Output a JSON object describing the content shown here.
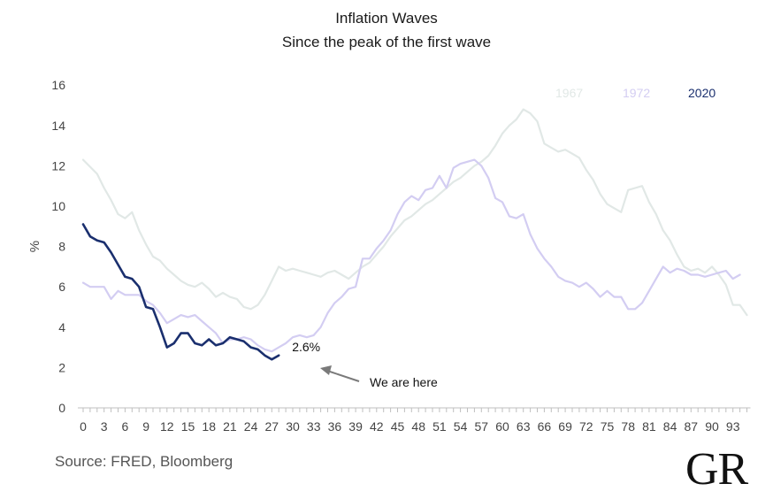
{
  "chart_data": {
    "type": "line",
    "title": "Inflation Waves",
    "subtitle": "Since the peak of the first wave",
    "xlabel": "",
    "ylabel": "%",
    "xlim": [
      0,
      95
    ],
    "ylim": [
      0,
      16
    ],
    "yticks": [
      0,
      2,
      4,
      6,
      8,
      10,
      12,
      14,
      16
    ],
    "xticks": [
      0,
      3,
      6,
      9,
      12,
      15,
      18,
      21,
      24,
      27,
      30,
      33,
      36,
      39,
      42,
      45,
      48,
      51,
      54,
      57,
      60,
      63,
      66,
      69,
      72,
      75,
      78,
      81,
      84,
      87,
      90,
      93
    ],
    "grid": false,
    "legend_position": "top-right",
    "series": [
      {
        "name": "1967",
        "color": "#e1e8e6",
        "points": [
          [
            0,
            12.3
          ],
          [
            2,
            11.6
          ],
          [
            3,
            10.9
          ],
          [
            4,
            10.3
          ],
          [
            5,
            9.6
          ],
          [
            6,
            9.4
          ],
          [
            7,
            9.7
          ],
          [
            8,
            8.8
          ],
          [
            9,
            8.1
          ],
          [
            10,
            7.5
          ],
          [
            11,
            7.3
          ],
          [
            12,
            6.9
          ],
          [
            13,
            6.6
          ],
          [
            14,
            6.3
          ],
          [
            15,
            6.1
          ],
          [
            16,
            6.0
          ],
          [
            17,
            6.2
          ],
          [
            18,
            5.9
          ],
          [
            19,
            5.5
          ],
          [
            20,
            5.7
          ],
          [
            21,
            5.5
          ],
          [
            22,
            5.4
          ],
          [
            23,
            5.0
          ],
          [
            24,
            4.9
          ],
          [
            25,
            5.1
          ],
          [
            26,
            5.6
          ],
          [
            27,
            6.3
          ],
          [
            28,
            7.0
          ],
          [
            29,
            6.8
          ],
          [
            30,
            6.9
          ],
          [
            31,
            6.8
          ],
          [
            32,
            6.7
          ],
          [
            33,
            6.6
          ],
          [
            34,
            6.5
          ],
          [
            35,
            6.7
          ],
          [
            36,
            6.8
          ],
          [
            37,
            6.6
          ],
          [
            38,
            6.4
          ],
          [
            39,
            6.7
          ],
          [
            40,
            7.0
          ],
          [
            41,
            7.2
          ],
          [
            42,
            7.6
          ],
          [
            43,
            8.0
          ],
          [
            44,
            8.5
          ],
          [
            45,
            8.9
          ],
          [
            46,
            9.3
          ],
          [
            47,
            9.5
          ],
          [
            48,
            9.8
          ],
          [
            49,
            10.1
          ],
          [
            50,
            10.3
          ],
          [
            51,
            10.6
          ],
          [
            52,
            10.9
          ],
          [
            53,
            11.2
          ],
          [
            54,
            11.4
          ],
          [
            55,
            11.7
          ],
          [
            56,
            12.0
          ],
          [
            57,
            12.2
          ],
          [
            58,
            12.5
          ],
          [
            59,
            13.0
          ],
          [
            60,
            13.6
          ],
          [
            61,
            14.0
          ],
          [
            62,
            14.3
          ],
          [
            63,
            14.8
          ],
          [
            64,
            14.6
          ],
          [
            65,
            14.2
          ],
          [
            66,
            13.1
          ],
          [
            67,
            12.9
          ],
          [
            68,
            12.7
          ],
          [
            69,
            12.8
          ],
          [
            70,
            12.6
          ],
          [
            71,
            12.4
          ],
          [
            72,
            11.8
          ],
          [
            73,
            11.3
          ],
          [
            74,
            10.6
          ],
          [
            75,
            10.1
          ],
          [
            76,
            9.9
          ],
          [
            77,
            9.7
          ],
          [
            78,
            10.8
          ],
          [
            79,
            10.9
          ],
          [
            80,
            11.0
          ],
          [
            81,
            10.2
          ],
          [
            82,
            9.6
          ],
          [
            83,
            8.8
          ],
          [
            84,
            8.3
          ],
          [
            85,
            7.6
          ],
          [
            86,
            7.0
          ],
          [
            87,
            6.8
          ],
          [
            88,
            6.9
          ],
          [
            89,
            6.7
          ],
          [
            90,
            7.0
          ],
          [
            91,
            6.6
          ],
          [
            92,
            6.1
          ],
          [
            93,
            5.1
          ],
          [
            94,
            5.1
          ],
          [
            95,
            4.6
          ]
        ]
      },
      {
        "name": "1972",
        "color": "#d3cdf2",
        "points": [
          [
            0,
            6.2
          ],
          [
            1,
            6.0
          ],
          [
            2,
            6.0
          ],
          [
            3,
            6.0
          ],
          [
            4,
            5.4
          ],
          [
            5,
            5.8
          ],
          [
            6,
            5.6
          ],
          [
            7,
            5.6
          ],
          [
            8,
            5.6
          ],
          [
            9,
            5.3
          ],
          [
            10,
            5.1
          ],
          [
            11,
            4.7
          ],
          [
            12,
            4.2
          ],
          [
            13,
            4.4
          ],
          [
            14,
            4.6
          ],
          [
            15,
            4.5
          ],
          [
            16,
            4.6
          ],
          [
            17,
            4.3
          ],
          [
            18,
            4.0
          ],
          [
            19,
            3.7
          ],
          [
            20,
            3.2
          ],
          [
            21,
            3.4
          ],
          [
            22,
            3.4
          ],
          [
            23,
            3.5
          ],
          [
            24,
            3.4
          ],
          [
            25,
            3.1
          ],
          [
            26,
            2.9
          ],
          [
            27,
            2.8
          ],
          [
            28,
            3.0
          ],
          [
            29,
            3.2
          ],
          [
            30,
            3.5
          ],
          [
            31,
            3.6
          ],
          [
            32,
            3.5
          ],
          [
            33,
            3.6
          ],
          [
            34,
            4.0
          ],
          [
            35,
            4.7
          ],
          [
            36,
            5.2
          ],
          [
            37,
            5.5
          ],
          [
            38,
            5.9
          ],
          [
            39,
            6.0
          ],
          [
            40,
            7.4
          ],
          [
            41,
            7.4
          ],
          [
            42,
            7.9
          ],
          [
            43,
            8.3
          ],
          [
            44,
            8.8
          ],
          [
            45,
            9.6
          ],
          [
            46,
            10.2
          ],
          [
            47,
            10.5
          ],
          [
            48,
            10.3
          ],
          [
            49,
            10.8
          ],
          [
            50,
            10.9
          ],
          [
            51,
            11.5
          ],
          [
            52,
            10.9
          ],
          [
            53,
            11.9
          ],
          [
            54,
            12.1
          ],
          [
            55,
            12.2
          ],
          [
            56,
            12.3
          ],
          [
            57,
            12.0
          ],
          [
            58,
            11.4
          ],
          [
            59,
            10.4
          ],
          [
            60,
            10.2
          ],
          [
            61,
            9.5
          ],
          [
            62,
            9.4
          ],
          [
            63,
            9.6
          ],
          [
            64,
            8.6
          ],
          [
            65,
            7.9
          ],
          [
            66,
            7.4
          ],
          [
            67,
            7.0
          ],
          [
            68,
            6.5
          ],
          [
            69,
            6.3
          ],
          [
            70,
            6.2
          ],
          [
            71,
            6.0
          ],
          [
            72,
            6.2
          ],
          [
            73,
            5.9
          ],
          [
            74,
            5.5
          ],
          [
            75,
            5.8
          ],
          [
            76,
            5.5
          ],
          [
            77,
            5.5
          ],
          [
            78,
            4.9
          ],
          [
            79,
            4.9
          ],
          [
            80,
            5.2
          ],
          [
            81,
            5.8
          ],
          [
            82,
            6.4
          ],
          [
            83,
            7.0
          ],
          [
            84,
            6.7
          ],
          [
            85,
            6.9
          ],
          [
            86,
            6.8
          ],
          [
            87,
            6.6
          ],
          [
            88,
            6.6
          ],
          [
            89,
            6.5
          ],
          [
            90,
            6.6
          ],
          [
            91,
            6.7
          ],
          [
            92,
            6.8
          ],
          [
            93,
            6.4
          ],
          [
            94,
            6.6
          ]
        ]
      },
      {
        "name": "2020",
        "color": "#1a2f6e",
        "points": [
          [
            0,
            9.1
          ],
          [
            1,
            8.5
          ],
          [
            2,
            8.3
          ],
          [
            3,
            8.2
          ],
          [
            4,
            7.7
          ],
          [
            5,
            7.1
          ],
          [
            6,
            6.5
          ],
          [
            7,
            6.4
          ],
          [
            8,
            6.0
          ],
          [
            9,
            5.0
          ],
          [
            10,
            4.9
          ],
          [
            11,
            4.0
          ],
          [
            12,
            3.0
          ],
          [
            13,
            3.2
          ],
          [
            14,
            3.7
          ],
          [
            15,
            3.7
          ],
          [
            16,
            3.2
          ],
          [
            17,
            3.1
          ],
          [
            18,
            3.4
          ],
          [
            19,
            3.1
          ],
          [
            20,
            3.2
          ],
          [
            21,
            3.5
          ],
          [
            22,
            3.4
          ],
          [
            23,
            3.3
          ],
          [
            24,
            3.0
          ],
          [
            25,
            2.9
          ],
          [
            26,
            2.6
          ],
          [
            27,
            2.4
          ],
          [
            28,
            2.6
          ]
        ]
      }
    ],
    "annotations": {
      "value_label": "2.6%",
      "arrow_text": "We are here"
    }
  },
  "source": "Source: FRED, Bloomberg",
  "logo": "GR"
}
